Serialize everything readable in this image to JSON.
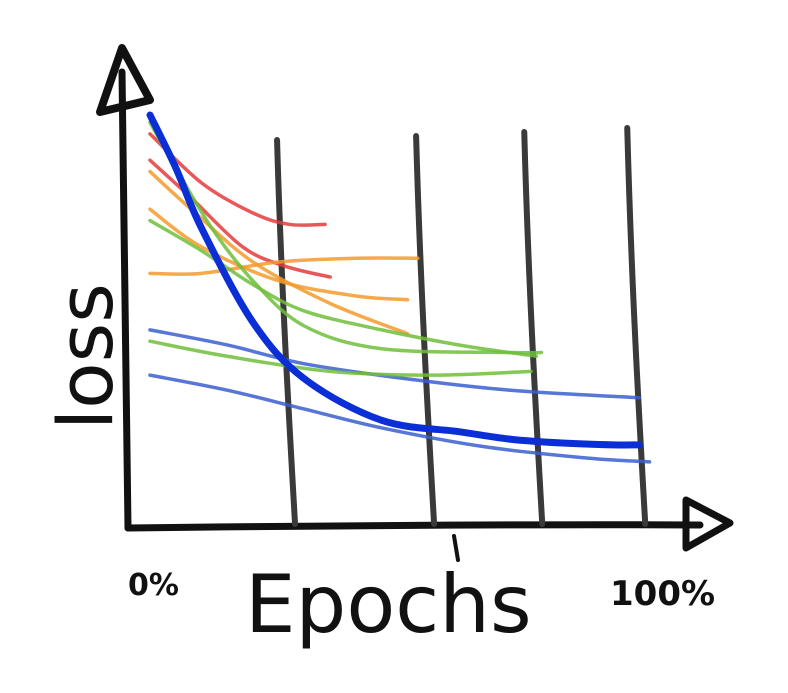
{
  "chart_data": {
    "type": "line",
    "title": "",
    "xlabel": "Epochs",
    "ylabel": "loss",
    "x_tick_labels": [
      "0%",
      "100%"
    ],
    "xlim": [
      0,
      100
    ],
    "ylim": [
      0,
      100
    ],
    "grid": "vertical",
    "vertical_markers_x": [
      27,
      54,
      75,
      95
    ],
    "series": [
      {
        "color": "#0b2fd6",
        "emphasis": true,
        "points": [
          [
            0,
            100
          ],
          [
            5,
            86
          ],
          [
            10,
            70
          ],
          [
            20,
            45
          ],
          [
            30,
            30
          ],
          [
            45,
            19
          ],
          [
            60,
            16
          ],
          [
            70,
            14
          ],
          [
            80,
            13
          ],
          [
            90,
            12.5
          ],
          [
            95,
            12.5
          ]
        ]
      },
      {
        "color": "#3a5fd0",
        "points": [
          [
            0,
            43
          ],
          [
            15,
            39
          ],
          [
            30,
            34
          ],
          [
            50,
            30
          ],
          [
            70,
            27
          ],
          [
            95,
            25
          ]
        ]
      },
      {
        "color": "#3a5fd0",
        "points": [
          [
            0,
            31
          ],
          [
            15,
            27
          ],
          [
            30,
            22
          ],
          [
            45,
            17
          ],
          [
            65,
            12
          ],
          [
            85,
            9
          ],
          [
            97,
            8
          ]
        ]
      },
      {
        "color": "#e53b3b",
        "points": [
          [
            0,
            95
          ],
          [
            10,
            82
          ],
          [
            20,
            74
          ],
          [
            27,
            71
          ],
          [
            34,
            71
          ]
        ]
      },
      {
        "color": "#e53b3b",
        "points": [
          [
            0,
            88
          ],
          [
            8,
            78
          ],
          [
            18,
            65
          ],
          [
            26,
            60
          ],
          [
            35,
            57
          ]
        ]
      },
      {
        "color": "#f39a2b",
        "points": [
          [
            0,
            75
          ],
          [
            10,
            65
          ],
          [
            25,
            56
          ],
          [
            40,
            52
          ],
          [
            50,
            51
          ]
        ]
      },
      {
        "color": "#f39a2b",
        "points": [
          [
            0,
            58
          ],
          [
            10,
            58
          ],
          [
            25,
            61
          ],
          [
            40,
            62
          ],
          [
            52,
            62
          ]
        ]
      },
      {
        "color": "#f39a2b",
        "points": [
          [
            0,
            85
          ],
          [
            8,
            75
          ],
          [
            20,
            61
          ],
          [
            35,
            50
          ],
          [
            50,
            42
          ]
        ]
      },
      {
        "color": "#6fbe3b",
        "points": [
          [
            0,
            98
          ],
          [
            5,
            86
          ],
          [
            12,
            70
          ],
          [
            20,
            56
          ],
          [
            30,
            44
          ],
          [
            45,
            38
          ],
          [
            70,
            37
          ],
          [
            76,
            37
          ]
        ]
      },
      {
        "color": "#6fbe3b",
        "points": [
          [
            0,
            40
          ],
          [
            15,
            36
          ],
          [
            35,
            32
          ],
          [
            55,
            31
          ],
          [
            74,
            32
          ]
        ]
      },
      {
        "color": "#6fbe3b",
        "points": [
          [
            0,
            72
          ],
          [
            10,
            64
          ],
          [
            20,
            55
          ],
          [
            30,
            48
          ],
          [
            45,
            43
          ],
          [
            60,
            39
          ],
          [
            75,
            36
          ]
        ]
      }
    ]
  }
}
